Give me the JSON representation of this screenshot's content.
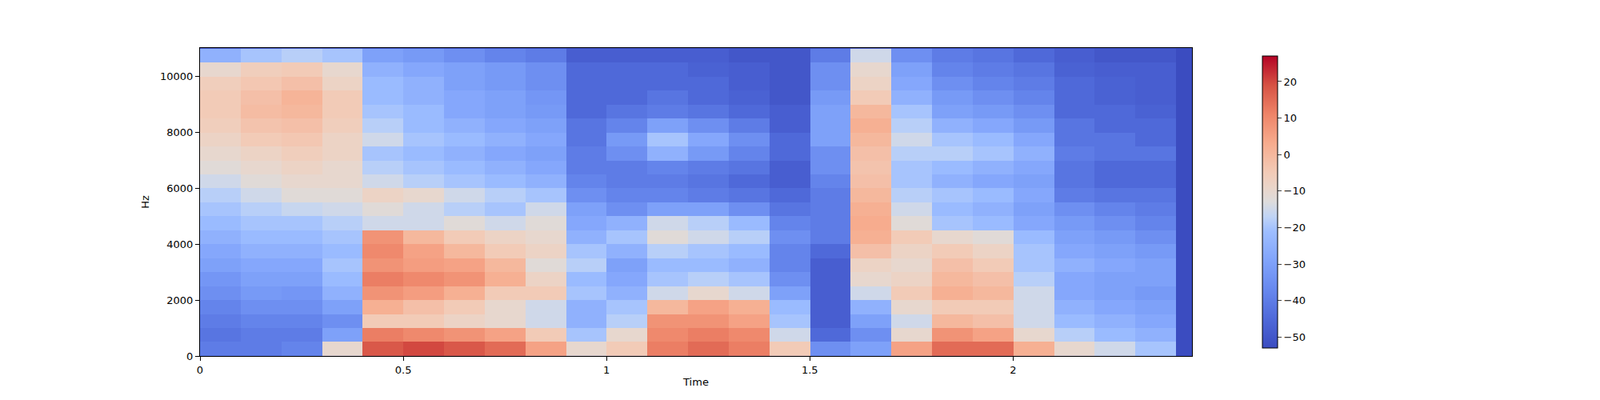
{
  "chart_data": {
    "type": "heatmap",
    "x_label": "Time",
    "y_label": "Hz",
    "x": [
      0.05,
      0.15,
      0.25,
      0.35,
      0.45,
      0.55,
      0.65,
      0.75,
      0.85,
      0.95,
      1.05,
      1.15,
      1.25,
      1.35,
      1.45,
      1.55,
      1.65,
      1.75,
      1.85,
      1.95,
      2.05,
      2.15,
      2.25,
      2.35
    ],
    "y": [
      250,
      750,
      1250,
      1750,
      2250,
      2750,
      3250,
      3750,
      4250,
      4750,
      5250,
      5750,
      6250,
      6750,
      7250,
      7750,
      8250,
      8750,
      9250,
      9750,
      10250,
      10750
    ],
    "cells": [
      [
        -40,
        -42,
        -40,
        -38,
        -35,
        -33,
        -30,
        -28,
        -25,
        -22,
        -20,
        -18,
        -15,
        -12,
        -10,
        -8,
        -6,
        -5,
        -5,
        -6,
        -10,
        -25
      ],
      [
        -40,
        -40,
        -38,
        -35,
        -32,
        -30,
        -28,
        -25,
        -22,
        -20,
        -18,
        -15,
        -12,
        -10,
        -8,
        -5,
        -3,
        -1,
        -2,
        -4,
        -6,
        -20
      ],
      [
        -38,
        -40,
        -38,
        -35,
        -33,
        -30,
        -28,
        -25,
        -22,
        -20,
        -16,
        -12,
        -10,
        -8,
        -6,
        -4,
        -2,
        0,
        1,
        -2,
        -5,
        -18
      ],
      [
        -10,
        -30,
        -35,
        -30,
        -25,
        -22,
        -20,
        -22,
        -20,
        -18,
        -15,
        -12,
        -10,
        -10,
        -8,
        -8,
        -6,
        -5,
        -5,
        -8,
        -10,
        -20
      ],
      [
        18,
        12,
        -5,
        2,
        8,
        12,
        8,
        10,
        8,
        -15,
        -12,
        -8,
        -15,
        -18,
        -20,
        -15,
        -18,
        -20,
        -22,
        -22,
        -25,
        -30
      ],
      [
        20,
        10,
        -5,
        -2,
        6,
        10,
        6,
        5,
        0,
        -15,
        -15,
        -10,
        -18,
        -20,
        -22,
        -20,
        -22,
        -22,
        -25,
        -25,
        -28,
        -32
      ],
      [
        18,
        8,
        -8,
        -5,
        2,
        8,
        5,
        0,
        -5,
        -12,
        -18,
        -15,
        -20,
        -22,
        -25,
        -22,
        -25,
        -28,
        -28,
        -30,
        -30,
        -35
      ],
      [
        15,
        5,
        -10,
        -10,
        -5,
        2,
        0,
        -5,
        -8,
        -15,
        -20,
        -18,
        -22,
        -25,
        -28,
        -25,
        -28,
        -30,
        -30,
        -32,
        -32,
        -38
      ],
      [
        5,
        -5,
        -15,
        -15,
        -5,
        -8,
        -12,
        -8,
        -10,
        -12,
        -15,
        -20,
        -25,
        -28,
        -30,
        -28,
        -30,
        -32,
        -33,
        -35,
        -35,
        -40
      ],
      [
        -10,
        -20,
        -25,
        -25,
        -20,
        -22,
        -18,
        -20,
        -25,
        -28,
        -30,
        -35,
        -38,
        -40,
        -40,
        -42,
        -42,
        -45,
        -45,
        -45,
        -45,
        -48
      ],
      [
        -5,
        -10,
        -18,
        -20,
        -25,
        -28,
        -30,
        -25,
        -20,
        -25,
        -35,
        -38,
        -40,
        -40,
        -35,
        -32,
        -38,
        -42,
        -45,
        -45,
        -45,
        -48
      ],
      [
        12,
        10,
        8,
        0,
        -15,
        -20,
        -22,
        -18,
        -12,
        -15,
        -30,
        -38,
        -40,
        -38,
        -25,
        -20,
        -30,
        -40,
        -42,
        -45,
        -45,
        -48
      ],
      [
        15,
        12,
        8,
        5,
        -10,
        -18,
        -22,
        -20,
        -15,
        -18,
        -30,
        -40,
        -42,
        -40,
        -32,
        -28,
        -35,
        -42,
        -45,
        -45,
        -47,
        -48
      ],
      [
        12,
        10,
        5,
        2,
        -15,
        -20,
        -25,
        -22,
        -18,
        -22,
        -35,
        -42,
        -45,
        -42,
        -38,
        -35,
        -40,
        -45,
        -47,
        -48,
        -48,
        -50
      ],
      [
        -5,
        -15,
        -20,
        -22,
        -30,
        -35,
        -38,
        -38,
        -35,
        -38,
        -42,
        -45,
        -48,
        -48,
        -45,
        -45,
        -48,
        -48,
        -50,
        -50,
        -50,
        -50
      ],
      [
        -35,
        -45,
        -48,
        -48,
        -48,
        -48,
        -48,
        -45,
        -40,
        -40,
        -40,
        -40,
        -38,
        -35,
        -35,
        -30,
        -30,
        -30,
        -32,
        -35,
        -35,
        -40
      ],
      [
        -30,
        -35,
        -30,
        -25,
        -15,
        -10,
        -8,
        -2,
        2,
        3,
        2,
        0,
        -2,
        -3,
        -2,
        0,
        2,
        0,
        -5,
        -8,
        -10,
        -15
      ],
      [
        5,
        -10,
        -15,
        -10,
        -5,
        -8,
        -10,
        -8,
        -5,
        -12,
        -15,
        -18,
        -20,
        -20,
        -18,
        -15,
        -18,
        -20,
        -25,
        -28,
        -30,
        -35
      ],
      [
        15,
        8,
        0,
        -5,
        2,
        0,
        -2,
        -5,
        -10,
        -20,
        -22,
        -20,
        -25,
        -22,
        -18,
        -20,
        -25,
        -30,
        -32,
        -35,
        -38,
        -40
      ],
      [
        15,
        5,
        -2,
        -5,
        0,
        -2,
        -5,
        -8,
        -12,
        -22,
        -25,
        -22,
        -28,
        -25,
        -20,
        -22,
        -28,
        -32,
        -35,
        -38,
        -40,
        -42
      ],
      [
        2,
        -10,
        -15,
        -15,
        -15,
        -18,
        -20,
        -20,
        -22,
        -28,
        -30,
        -28,
        -30,
        -28,
        -25,
        -28,
        -32,
        -35,
        -38,
        -40,
        -42,
        -45
      ],
      [
        -10,
        -18,
        -22,
        -25,
        -28,
        -28,
        -25,
        -28,
        -30,
        -32,
        -35,
        -40,
        -42,
        -42,
        -40,
        -42,
        -42,
        -45,
        -45,
        -45,
        -47,
        -48
      ],
      [
        -15,
        -22,
        -25,
        -28,
        -30,
        -30,
        -28,
        -30,
        -32,
        -35,
        -38,
        -42,
        -45,
        -45,
        -42,
        -42,
        -45,
        -45,
        -47,
        -47,
        -48,
        -50
      ],
      [
        -20,
        -25,
        -28,
        -30,
        -32,
        -30,
        -30,
        -32,
        -35,
        -38,
        -40,
        -42,
        -45,
        -45,
        -42,
        -45,
        -45,
        -47,
        -48,
        -48,
        -48,
        -50
      ]
    ],
    "xlim": [
      0,
      2.44
    ],
    "xticks": [
      0,
      0.5,
      1,
      1.5,
      2
    ],
    "ylim": [
      0,
      11025
    ],
    "yticks": [
      0,
      2000,
      4000,
      6000,
      8000,
      10000
    ],
    "colorbar_range": [
      -53,
      27
    ],
    "colorbar_ticks": [
      -50,
      -40,
      -30,
      -20,
      -10,
      0,
      10,
      20
    ]
  }
}
